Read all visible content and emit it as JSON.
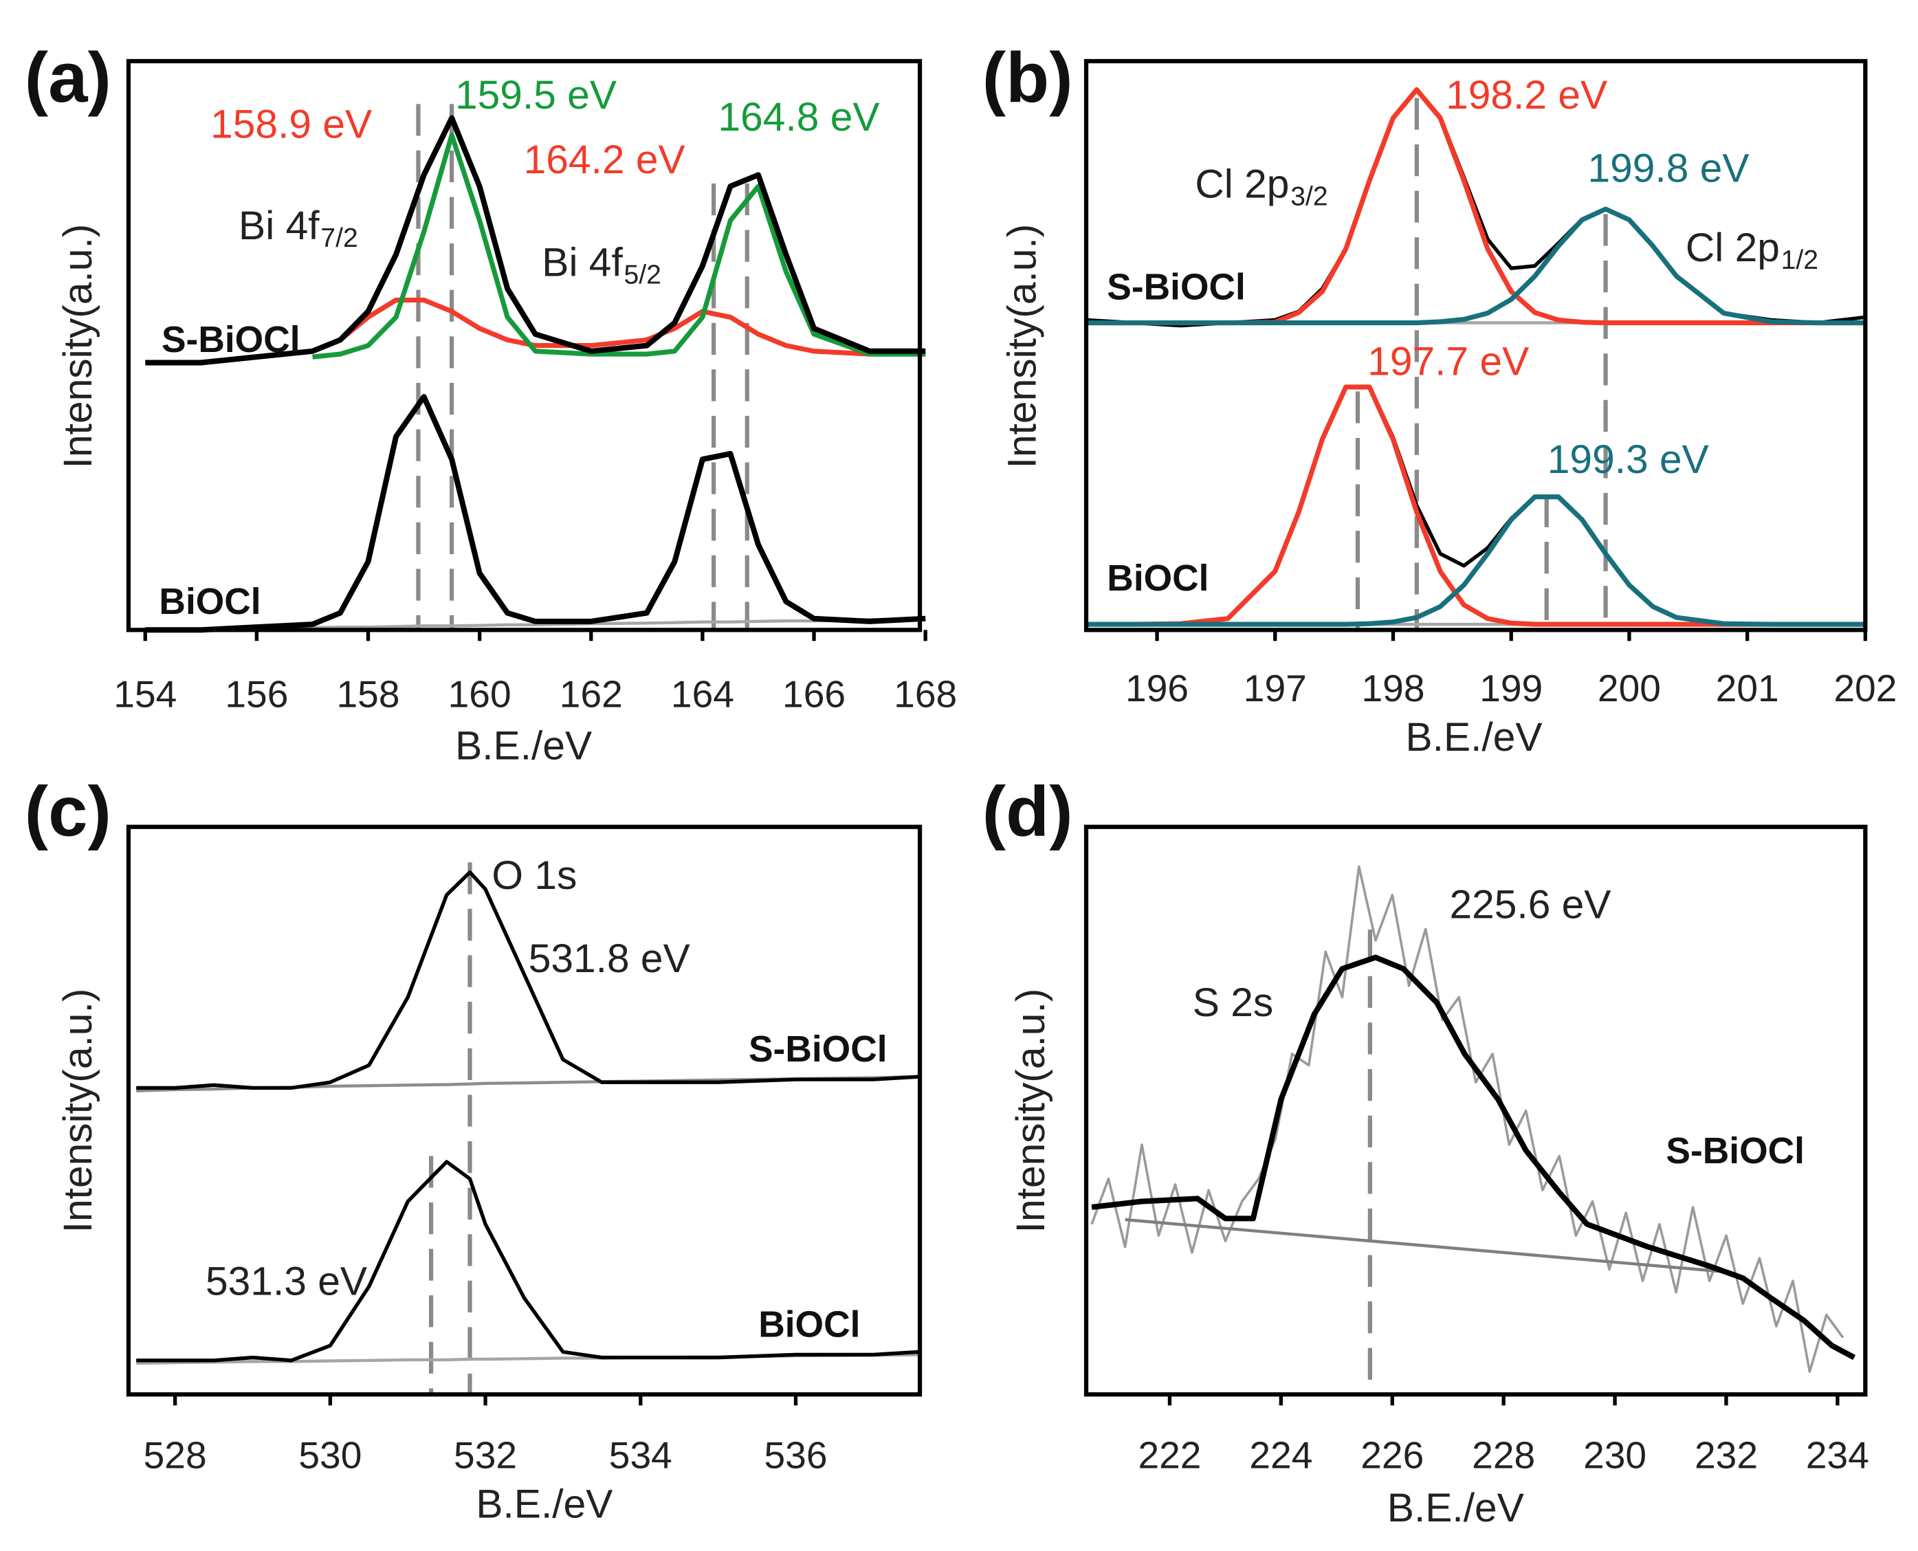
{
  "chart_data": [
    {
      "type": "line",
      "panel": "(a)",
      "xlabel": "B.E./eV",
      "ylabel": "Intensity(a.u.)",
      "xlim": [
        153.7,
        167.9
      ],
      "xticks": [
        154,
        156,
        158,
        160,
        162,
        164,
        166,
        168
      ],
      "ylim": [
        0,
        100
      ],
      "x": [
        154,
        155,
        156,
        157,
        157.5,
        158,
        158.5,
        159,
        159.5,
        160,
        160.5,
        161,
        162,
        163,
        163.5,
        164,
        164.5,
        165,
        165.5,
        166,
        167,
        168
      ],
      "series": [
        {
          "color": "#a6a6a6",
          "values": [
            0,
            0.1,
            0.3,
            0.4,
            0.5,
            0.5,
            0.6,
            0.7,
            0.7,
            0.8,
            0.9,
            0.9,
            1.1,
            1.2,
            1.3,
            1.4,
            1.4,
            1.5,
            1.6,
            1.6,
            1.8,
            2
          ]
        },
        {
          "color": "#f23b2a",
          "values": [
            null,
            null,
            null,
            49,
            51,
            55,
            58,
            58,
            56,
            53,
            51,
            50,
            50,
            51,
            53,
            56,
            55,
            52,
            50,
            49,
            48.5,
            48.5
          ]
        },
        {
          "color": "#169b3b",
          "values": [
            null,
            null,
            null,
            48,
            48.5,
            50,
            55,
            70,
            87,
            72,
            55,
            49,
            48.5,
            48.5,
            49,
            55,
            72,
            78,
            63,
            52,
            48.5,
            48.5
          ]
        },
        {
          "color": "#000000",
          "values": [
            47,
            47,
            48,
            49,
            51,
            56,
            66,
            80,
            90,
            78,
            60,
            52,
            49,
            50,
            54,
            64,
            78,
            80,
            66,
            53,
            49,
            49
          ]
        },
        {
          "color": "#000000",
          "values": [
            0,
            0,
            0.5,
            1,
            3,
            12,
            34,
            41,
            30,
            10,
            3,
            1.5,
            1.5,
            3,
            12,
            30,
            31,
            15,
            5,
            2,
            1.5,
            2
          ]
        }
      ],
      "peak_lines": [
        158.9,
        159.5,
        164.2,
        164.8
      ],
      "annotations": [
        {
          "text": "158.9 eV",
          "color": "#f23b2a"
        },
        {
          "text": "159.5 eV",
          "color": "#169b3b"
        },
        {
          "text": "164.2 eV",
          "color": "#f23b2a"
        },
        {
          "text": "164.8 eV",
          "color": "#169b3b"
        },
        {
          "text": "Bi 4f",
          "sub": "7/2",
          "color": "#222222"
        },
        {
          "text": "Bi 4f",
          "sub": "5/2",
          "color": "#222222"
        }
      ],
      "samples": [
        "S-BiOCl",
        "BiOCl"
      ]
    },
    {
      "type": "line",
      "panel": "(b)",
      "xlabel": "B.E./eV",
      "ylabel": "Intensity(a.u.)",
      "xlim": [
        195.4,
        202.0
      ],
      "xticks": [
        196,
        197,
        198,
        199,
        200,
        201,
        202
      ],
      "ylim": [
        0,
        100
      ],
      "x": [
        195.4,
        195.8,
        196.2,
        196.6,
        197.0,
        197.2,
        197.4,
        197.6,
        197.8,
        198.0,
        198.2,
        198.4,
        198.6,
        198.8,
        199.0,
        199.2,
        199.4,
        199.6,
        199.8,
        200.0,
        200.2,
        200.4,
        200.8,
        201.2,
        201.6,
        202.0
      ],
      "series": [
        {
          "color": "#a6a6a6",
          "values": [
            54,
            54,
            54,
            54,
            54,
            54,
            54,
            54,
            54,
            54,
            54,
            54,
            54,
            54,
            54,
            54,
            54,
            54,
            54,
            54,
            54,
            54,
            54,
            54,
            54,
            54
          ]
        },
        {
          "color": "#a6a6a6",
          "values": [
            1,
            1,
            1,
            1,
            1,
            1,
            1,
            1,
            1,
            1,
            1,
            1,
            1,
            1,
            1,
            1,
            1,
            1,
            1,
            1,
            1,
            1,
            1,
            1,
            1,
            1
          ]
        },
        {
          "color": "#000000",
          "values": [
            54.5,
            54,
            53.5,
            54,
            54.5,
            56,
            60,
            67,
            79,
            90,
            95,
            90.2,
            79.6,
            68.7,
            63.6,
            64,
            68,
            72.2,
            74,
            72.1,
            67.5,
            62.2,
            55.7,
            54.5,
            54,
            55
          ]
        },
        {
          "color": "#f23b2a",
          "values": [
            54,
            54,
            54,
            54,
            54.1,
            55.8,
            59.5,
            67,
            79,
            90,
            95,
            90,
            79,
            67,
            59.5,
            55.8,
            54.5,
            54.1,
            54,
            54,
            54,
            54,
            54,
            54,
            54,
            54
          ]
        },
        {
          "color": "#18707d",
          "values": [
            54,
            54,
            54,
            54,
            54,
            54,
            54,
            54,
            54,
            54,
            54,
            54.2,
            54.6,
            55.7,
            58.1,
            62.2,
            67.5,
            72.1,
            74,
            72.1,
            67.5,
            62.2,
            55.7,
            54.2,
            54,
            54
          ]
        },
        {
          "color": "#000000",
          "values": [
            1,
            1,
            1.1,
            2,
            10.3,
            20.7,
            33.5,
            42.7,
            42.8,
            33.9,
            21.9,
            13.4,
            11.3,
            14.4,
            19.6,
            23.4,
            23.4,
            19.4,
            13.4,
            7.9,
            4.1,
            2.2,
            1.1,
            1,
            1,
            1
          ]
        },
        {
          "color": "#f23b2a",
          "values": [
            1,
            1,
            1.1,
            2,
            10.3,
            20.7,
            33.5,
            42.7,
            42.7,
            33.5,
            20.7,
            10.3,
            4.4,
            2,
            1.2,
            1,
            1,
            1,
            1,
            1,
            1,
            1,
            1,
            1,
            1,
            1
          ]
        },
        {
          "color": "#18707d",
          "values": [
            1,
            1,
            1,
            1,
            1,
            1,
            1,
            1,
            1.1,
            1.4,
            2.2,
            4.1,
            7.9,
            13.4,
            19.4,
            23.4,
            23.4,
            19.4,
            13.4,
            7.9,
            4.1,
            2.2,
            1.1,
            1,
            1,
            1
          ]
        }
      ],
      "peak_lines": [
        198.2,
        199.8,
        197.7,
        199.3
      ],
      "annotations": [
        {
          "text": "198.2 eV",
          "color": "#f23b2a"
        },
        {
          "text": "199.8 eV",
          "color": "#18707d"
        },
        {
          "text": "Cl 2p",
          "sub": "3/2",
          "color": "#222222"
        },
        {
          "text": "Cl 2p",
          "sub": "1/2",
          "color": "#222222"
        },
        {
          "text": "197.7 eV",
          "color": "#f23b2a"
        },
        {
          "text": "199.3 eV",
          "color": "#18707d"
        }
      ],
      "samples": [
        "S-BiOCl",
        "BiOCl"
      ]
    },
    {
      "type": "line",
      "panel": "(c)",
      "xlabel": "B.E./eV",
      "ylabel": "Intensity(a.u.)",
      "xlim": [
        527.4,
        537.6
      ],
      "xticks": [
        528,
        530,
        532,
        534,
        536
      ],
      "ylim": [
        0,
        100
      ],
      "x": [
        527.5,
        528,
        528.5,
        529,
        529.5,
        530,
        530.5,
        531,
        531.5,
        531.8,
        532,
        532.5,
        533,
        533.5,
        534,
        535,
        536,
        537,
        537.6
      ],
      "series": [
        {
          "color": "#8c8c8c",
          "values": [
            53.5,
            53.7,
            53.8,
            54,
            54.1,
            54.3,
            54.4,
            54.5,
            54.6,
            54.7,
            54.8,
            54.9,
            55,
            55.1,
            55.2,
            55.4,
            55.6,
            55.8,
            56
          ]
        },
        {
          "color": "#a6a6a6",
          "values": [
            5.5,
            5.6,
            5.7,
            5.8,
            5.8,
            5.9,
            6,
            6.1,
            6.1,
            6.2,
            6.2,
            6.3,
            6.4,
            6.4,
            6.5,
            6.6,
            6.8,
            6.9,
            7
          ]
        },
        {
          "color": "#000000",
          "values": [
            54,
            54,
            54.5,
            54,
            54,
            55,
            58,
            70,
            88,
            92,
            89,
            74,
            59,
            55,
            55,
            55,
            55.5,
            55.5,
            56
          ]
        },
        {
          "color": "#000000",
          "values": [
            6,
            6,
            6,
            6.5,
            6,
            8.6,
            19,
            34,
            41,
            38,
            30,
            17,
            7.5,
            6.5,
            6.5,
            6.5,
            7,
            7,
            7.5
          ]
        }
      ],
      "peak_lines": [
        531.8,
        531.3
      ],
      "annotations": [
        {
          "text": "O 1s",
          "color": "#222222"
        },
        {
          "text": "531.8 eV",
          "color": "#222222"
        },
        {
          "text": "531.3 eV",
          "color": "#222222"
        }
      ],
      "samples": [
        "S-BiOCl",
        "BiOCl"
      ]
    },
    {
      "type": "line",
      "panel": "(d)",
      "xlabel": "B.E./eV",
      "ylabel": "Intensity(a.u.)",
      "xlim": [
        220.5,
        234.5
      ],
      "xticks": [
        222,
        224,
        226,
        228,
        230,
        232,
        234
      ],
      "ylim": [
        0,
        100
      ],
      "series": [
        {
          "color": "#9a9a9a",
          "x": [
            220.6,
            220.9,
            221.2,
            221.5,
            221.8,
            222.1,
            222.4,
            222.7,
            223.0,
            223.3,
            223.6,
            223.9,
            224.2,
            224.5,
            224.8,
            225.1,
            225.4,
            225.7,
            226.0,
            226.3,
            226.6,
            226.9,
            227.2,
            227.5,
            227.8,
            228.1,
            228.4,
            228.7,
            229.0,
            229.3,
            229.6,
            229.9,
            230.2,
            230.5,
            230.8,
            231.1,
            231.4,
            231.7,
            232.0,
            232.3,
            232.6,
            232.9,
            233.2,
            233.5,
            233.8,
            234.1
          ],
          "values": [
            30,
            38,
            26,
            44,
            28,
            37,
            25,
            36,
            27,
            34,
            38,
            45,
            60,
            58,
            78,
            70,
            93,
            80,
            88,
            72,
            82,
            66,
            70,
            55,
            60,
            44,
            50,
            36,
            42,
            28,
            34,
            22,
            32,
            20,
            30,
            18,
            33,
            20,
            28,
            16,
            24,
            12,
            20,
            4,
            14,
            10
          ]
        },
        {
          "color": "#7f7f7f",
          "x": [
            221.2,
            232.0
          ],
          "values": [
            30.8,
            21.6
          ]
        },
        {
          "color": "#000000",
          "x": [
            220.6,
            221.5,
            222.5,
            223,
            223.5,
            224,
            224.6,
            225.1,
            225.7,
            226.2,
            226.8,
            227.3,
            227.9,
            228.4,
            229,
            229.5,
            230.6,
            231.7,
            232.3,
            232.8,
            233.4,
            233.9,
            234.3
          ],
          "values": [
            33,
            34,
            34.5,
            31,
            31,
            52,
            67,
            75,
            77,
            75,
            69,
            60,
            52,
            43,
            35.6,
            30,
            26,
            22.6,
            20.5,
            17,
            13,
            8.6,
            6.5
          ]
        }
      ],
      "peak_lines": [
        225.6
      ],
      "annotations": [
        {
          "text": "225.6 eV",
          "color": "#222222"
        },
        {
          "text": "S 2s",
          "color": "#222222"
        }
      ],
      "samples": [
        "S-BiOCl"
      ]
    }
  ]
}
